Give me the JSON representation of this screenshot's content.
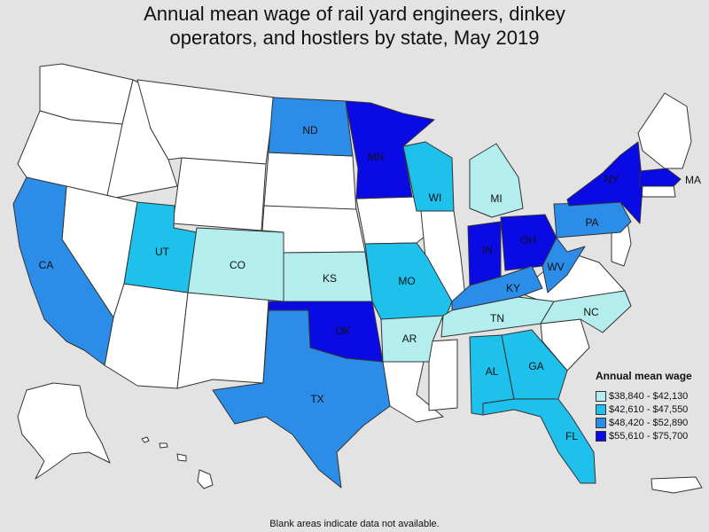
{
  "title_lines": [
    "Annual mean wage of rail yard engineers, dinkey",
    "operators, and hostlers by state, May 2019"
  ],
  "legend": {
    "title": "Annual mean wage",
    "bins": [
      {
        "label": "$38,840 - $42,130",
        "color": "#b3eded"
      },
      {
        "label": "$42,610 - $47,550",
        "color": "#1ec0ec"
      },
      {
        "label": "$48,420 - $52,890",
        "color": "#2b8de8"
      },
      {
        "label": "$55,610 - $75,700",
        "color": "#0a0ae4"
      }
    ]
  },
  "no_data_color": "#ffffff",
  "states": [
    {
      "abbr": "CA",
      "bin": 2
    },
    {
      "abbr": "UT",
      "bin": 1
    },
    {
      "abbr": "CO",
      "bin": 0
    },
    {
      "abbr": "KS",
      "bin": 0
    },
    {
      "abbr": "ND",
      "bin": 2
    },
    {
      "abbr": "MN",
      "bin": 3
    },
    {
      "abbr": "WI",
      "bin": 1
    },
    {
      "abbr": "MI",
      "bin": 0
    },
    {
      "abbr": "MO",
      "bin": 1
    },
    {
      "abbr": "AR",
      "bin": 0
    },
    {
      "abbr": "OK",
      "bin": 3
    },
    {
      "abbr": "TX",
      "bin": 2
    },
    {
      "abbr": "IN",
      "bin": 3
    },
    {
      "abbr": "OH",
      "bin": 3
    },
    {
      "abbr": "KY",
      "bin": 2
    },
    {
      "abbr": "TN",
      "bin": 0
    },
    {
      "abbr": "WV",
      "bin": 2
    },
    {
      "abbr": "PA",
      "bin": 2
    },
    {
      "abbr": "NY",
      "bin": 3
    },
    {
      "abbr": "MA",
      "bin": 3
    },
    {
      "abbr": "NC",
      "bin": 0
    },
    {
      "abbr": "AL",
      "bin": 1
    },
    {
      "abbr": "GA",
      "bin": 1
    },
    {
      "abbr": "FL",
      "bin": 1
    }
  ],
  "footnote": "Blank areas indicate data not available."
}
